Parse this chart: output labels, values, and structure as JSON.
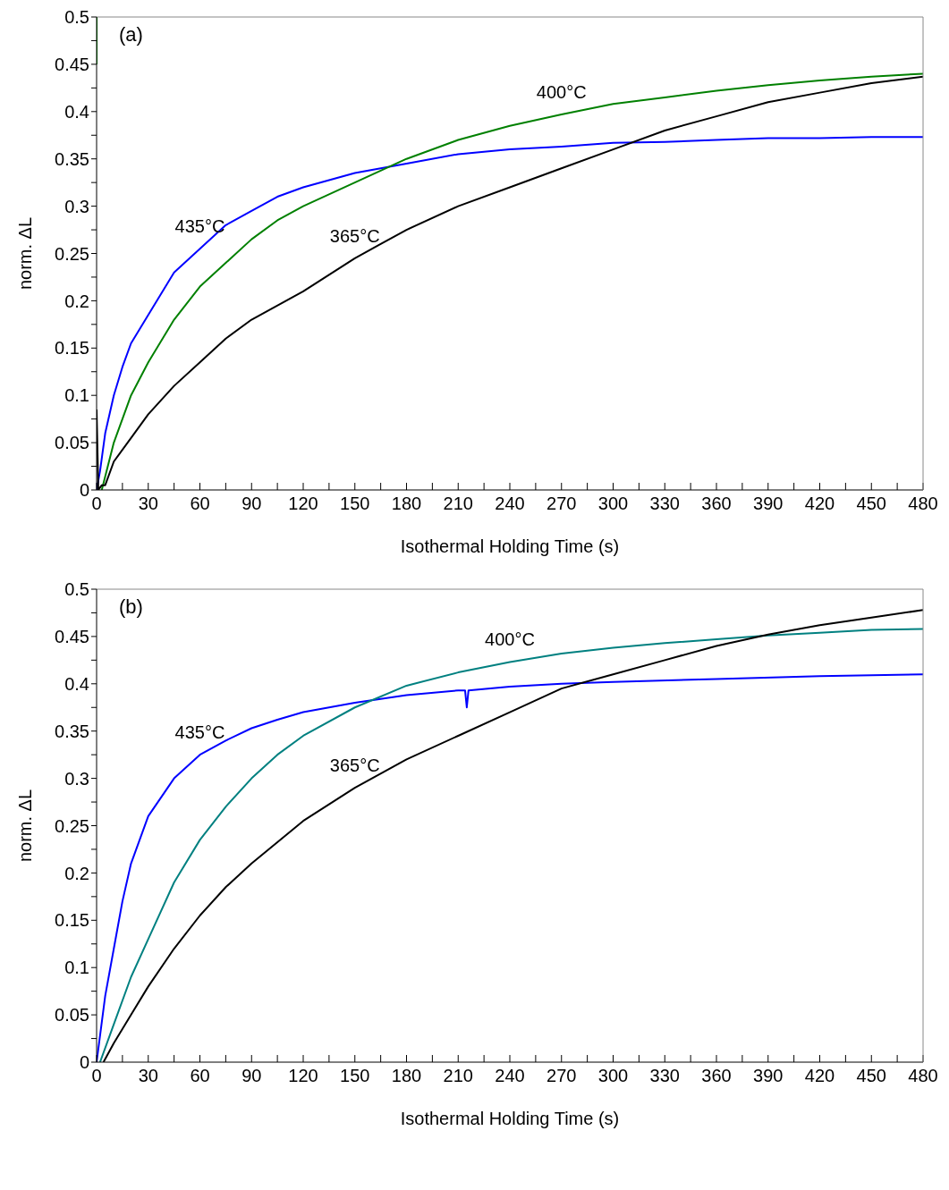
{
  "chart_data": [
    {
      "type": "line",
      "annotations": [
        "(a)"
      ],
      "xlabel": "Isothermal Holding Time (s)",
      "ylabel": "norm. ΔL",
      "xlim": [
        0,
        480
      ],
      "ylim": [
        0,
        0.5
      ],
      "xticks": [
        0,
        {
          "value": 15,
          "label": null
        },
        30,
        {
          "value": 45,
          "label": null
        },
        60,
        {
          "value": 75,
          "label": null
        },
        90,
        {
          "value": 105,
          "label": null
        },
        120,
        {
          "value": 135,
          "label": null
        },
        150,
        {
          "value": 165,
          "label": null
        },
        180,
        {
          "value": 195,
          "label": null
        },
        210,
        {
          "value": 225,
          "label": null
        },
        240,
        {
          "value": 255,
          "label": null
        },
        270,
        {
          "value": 285,
          "label": null
        },
        300,
        {
          "value": 315,
          "label": null
        },
        330,
        {
          "value": 345,
          "label": null
        },
        360,
        {
          "value": 375,
          "label": null
        },
        390,
        {
          "value": 405,
          "label": null
        },
        420,
        {
          "value": 435,
          "label": null
        },
        450,
        {
          "value": 465,
          "label": null
        },
        480
      ],
      "yticks": [
        0,
        {
          "value": 0.025,
          "label": null
        },
        0.05,
        {
          "value": 0.075,
          "label": null
        },
        0.1,
        {
          "value": 0.125,
          "label": null
        },
        0.15,
        {
          "value": 0.175,
          "label": null
        },
        0.2,
        {
          "value": 0.225,
          "label": null
        },
        0.25,
        {
          "value": 0.275,
          "label": null
        },
        0.3,
        {
          "value": 0.325,
          "label": null
        },
        0.35,
        {
          "value": 0.375,
          "label": null
        },
        0.4,
        {
          "value": 0.425,
          "label": null
        },
        0.45,
        {
          "value": 0.475,
          "label": null
        },
        0.5
      ],
      "grid": false,
      "legend": false,
      "marker": "none",
      "line_style": "solid",
      "series": [
        {
          "name": "435°C",
          "color": "#0000ff",
          "x": [
            0,
            2,
            5,
            10,
            15,
            20,
            30,
            45,
            60,
            75,
            90,
            105,
            120,
            150,
            180,
            210,
            240,
            270,
            300,
            330,
            360,
            390,
            420,
            450,
            480
          ],
          "values": [
            0,
            0.02,
            0.06,
            0.1,
            0.13,
            0.155,
            0.185,
            0.23,
            0.255,
            0.28,
            0.295,
            0.31,
            0.32,
            0.335,
            0.345,
            0.355,
            0.36,
            0.363,
            0.367,
            0.368,
            0.37,
            0.372,
            0.372,
            0.373,
            0.373
          ]
        },
        {
          "name": "400°C",
          "color": "#008000",
          "x": [
            0,
            0,
            1,
            3,
            10,
            20,
            30,
            45,
            60,
            75,
            90,
            105,
            120,
            150,
            180,
            210,
            240,
            270,
            300,
            330,
            360,
            390,
            420,
            450,
            480
          ],
          "values": [
            0.5,
            0.45,
            null,
            0,
            0.05,
            0.1,
            0.135,
            0.18,
            0.215,
            0.24,
            0.265,
            0.285,
            0.3,
            0.325,
            0.35,
            0.37,
            0.385,
            0.397,
            0.408,
            0.415,
            0.422,
            0.428,
            0.433,
            0.437,
            0.44
          ]
        },
        {
          "name": "365°C",
          "color": "#000000",
          "x": [
            0,
            1,
            3,
            5,
            10,
            20,
            30,
            45,
            60,
            75,
            90,
            120,
            150,
            165,
            180,
            210,
            240,
            270,
            300,
            330,
            360,
            390,
            420,
            450,
            480
          ],
          "values": [
            0.085,
            0,
            0.005,
            0.005,
            0.03,
            0.055,
            0.08,
            0.11,
            0.135,
            0.16,
            0.18,
            0.21,
            0.245,
            0.26,
            0.275,
            0.3,
            0.32,
            0.34,
            0.36,
            0.38,
            0.395,
            0.41,
            0.42,
            0.43,
            0.437
          ]
        }
      ]
    },
    {
      "type": "line",
      "annotations": [
        "(b)"
      ],
      "xlabel": "Isothermal Holding Time (s)",
      "ylabel": "norm. ΔL",
      "xlim": [
        0,
        480
      ],
      "ylim": [
        0,
        0.5
      ],
      "xticks": [
        0,
        {
          "value": 15,
          "label": null
        },
        30,
        {
          "value": 45,
          "label": null
        },
        60,
        {
          "value": 75,
          "label": null
        },
        90,
        {
          "value": 105,
          "label": null
        },
        120,
        {
          "value": 135,
          "label": null
        },
        150,
        {
          "value": 165,
          "label": null
        },
        180,
        {
          "value": 195,
          "label": null
        },
        210,
        {
          "value": 225,
          "label": null
        },
        240,
        {
          "value": 255,
          "label": null
        },
        270,
        {
          "value": 285,
          "label": null
        },
        300,
        {
          "value": 315,
          "label": null
        },
        330,
        {
          "value": 345,
          "label": null
        },
        360,
        {
          "value": 375,
          "label": null
        },
        390,
        {
          "value": 405,
          "label": null
        },
        420,
        {
          "value": 435,
          "label": null
        },
        450,
        {
          "value": 465,
          "label": null
        },
        480
      ],
      "yticks": [
        0,
        {
          "value": 0.025,
          "label": null
        },
        0.05,
        {
          "value": 0.075,
          "label": null
        },
        0.1,
        {
          "value": 0.125,
          "label": null
        },
        0.15,
        {
          "value": 0.175,
          "label": null
        },
        0.2,
        {
          "value": 0.225,
          "label": null
        },
        0.25,
        {
          "value": 0.275,
          "label": null
        },
        0.3,
        {
          "value": 0.325,
          "label": null
        },
        0.35,
        {
          "value": 0.375,
          "label": null
        },
        0.4,
        {
          "value": 0.425,
          "label": null
        },
        0.45,
        {
          "value": 0.475,
          "label": null
        },
        0.5
      ],
      "grid": false,
      "legend": false,
      "marker": "none",
      "line_style": "solid",
      "series": [
        {
          "name": "435°C",
          "color": "#0000ff",
          "x": [
            0,
            5,
            10,
            15,
            20,
            30,
            45,
            60,
            75,
            90,
            105,
            120,
            150,
            180,
            210,
            214,
            215,
            216,
            240,
            270,
            300,
            360,
            420,
            480
          ],
          "values": [
            0,
            0.07,
            0.12,
            0.17,
            0.21,
            0.26,
            0.3,
            0.325,
            0.34,
            0.353,
            0.362,
            0.37,
            0.38,
            0.388,
            0.393,
            0.393,
            0.375,
            0.393,
            0.397,
            0.4,
            0.402,
            0.405,
            0.408,
            0.41
          ]
        },
        {
          "name": "400°C",
          "color": "#008080",
          "x": [
            2,
            10,
            20,
            30,
            45,
            60,
            75,
            90,
            105,
            120,
            150,
            180,
            210,
            240,
            270,
            300,
            330,
            360,
            390,
            420,
            450,
            480
          ],
          "values": [
            0,
            0.04,
            0.09,
            0.13,
            0.19,
            0.235,
            0.27,
            0.3,
            0.325,
            0.345,
            0.375,
            0.398,
            0.412,
            0.423,
            0.432,
            0.438,
            0.443,
            0.447,
            0.451,
            0.454,
            0.457,
            0.458
          ]
        },
        {
          "name": "365°C",
          "color": "#000000",
          "x": [
            4,
            10,
            20,
            30,
            45,
            60,
            75,
            90,
            120,
            150,
            180,
            210,
            240,
            270,
            300,
            330,
            360,
            390,
            420,
            450,
            480
          ],
          "values": [
            0,
            0.02,
            0.05,
            0.08,
            0.12,
            0.155,
            0.185,
            0.21,
            0.255,
            0.29,
            0.32,
            0.345,
            0.37,
            0.395,
            0.41,
            0.425,
            0.44,
            0.452,
            0.462,
            0.47,
            0.478
          ]
        }
      ]
    }
  ]
}
